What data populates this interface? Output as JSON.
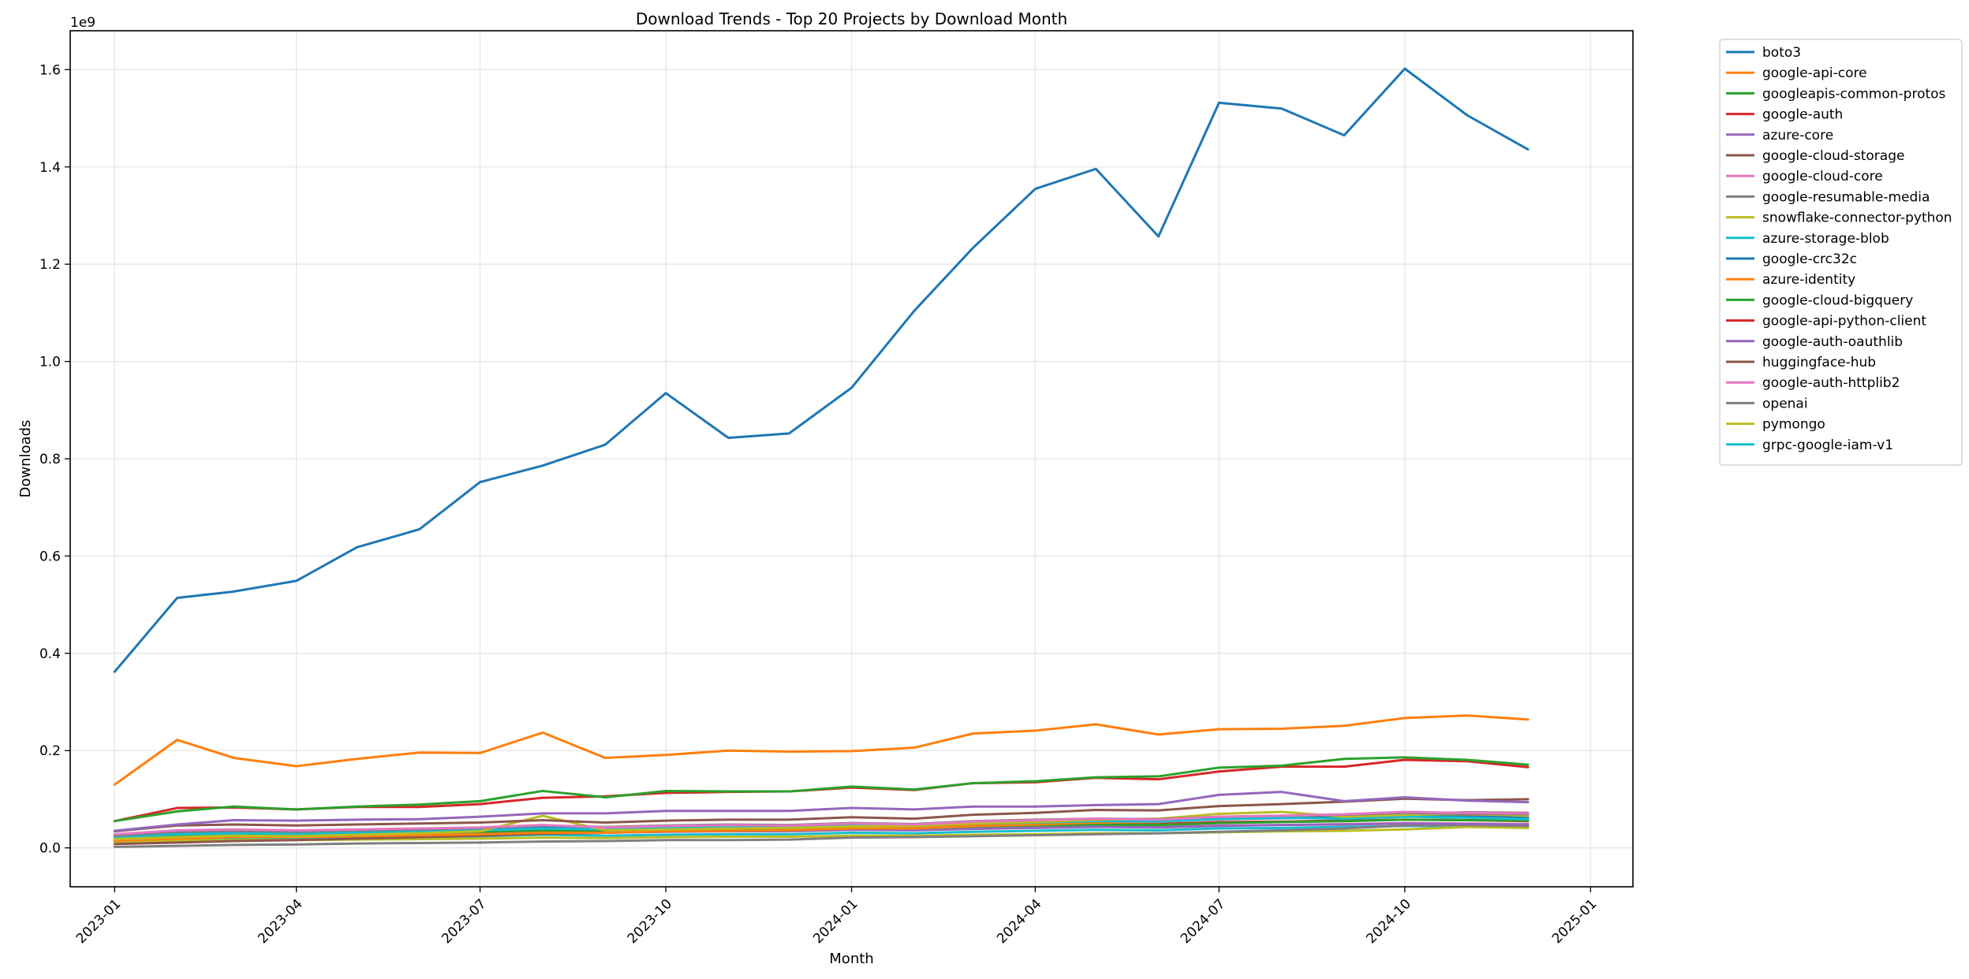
{
  "chart_data": {
    "type": "line",
    "title": "Download Trends - Top 20 Projects by Download Month",
    "xlabel": "Month",
    "ylabel": "Downloads",
    "y_offset_label": "1e9",
    "y_scale": 1000000000,
    "x_start_month": "2023-01",
    "x": [
      "2023-01",
      "2023-02",
      "2023-03",
      "2023-04",
      "2023-05",
      "2023-06",
      "2023-07",
      "2023-08",
      "2023-09",
      "2023-10",
      "2023-11",
      "2023-12",
      "2024-01",
      "2024-02",
      "2024-03",
      "2024-04",
      "2024-05",
      "2024-06",
      "2024-07",
      "2024-08",
      "2024-09",
      "2024-10",
      "2024-11",
      "2024-12"
    ],
    "xlim": [
      "2022-12-10",
      "2025-01-22"
    ],
    "ylim": [
      -0.08,
      1.68
    ],
    "xticks": [
      "2023-01",
      "2023-04",
      "2023-07",
      "2023-10",
      "2024-01",
      "2024-04",
      "2024-07",
      "2024-10",
      "2025-01"
    ],
    "yticks": [
      0.0,
      0.2,
      0.4,
      0.6,
      0.8,
      1.0,
      1.2,
      1.4,
      1.6
    ],
    "ytick_labels": [
      "0.0",
      "0.2",
      "0.4",
      "0.6",
      "0.8",
      "1.0",
      "1.2",
      "1.4",
      "1.6"
    ],
    "grid": true,
    "legend_position": "outside-right",
    "series": [
      {
        "name": "boto3",
        "color": "#1f77b4",
        "values": [
          0.362,
          0.514,
          0.527,
          0.549,
          0.618,
          0.655,
          0.752,
          0.786,
          0.829,
          0.935,
          0.843,
          0.852,
          0.946,
          1.104,
          1.233,
          1.355,
          1.396,
          1.257,
          1.532,
          1.52,
          1.465,
          1.602,
          1.506,
          1.436
        ]
      },
      {
        "name": "google-api-core",
        "color": "#ff7f0e",
        "values": [
          0.13,
          0.222,
          0.185,
          0.168,
          0.183,
          0.196,
          0.195,
          0.237,
          0.185,
          0.191,
          0.2,
          0.198,
          0.199,
          0.206,
          0.235,
          0.241,
          0.254,
          0.233,
          0.244,
          0.245,
          0.251,
          0.267,
          0.272,
          0.264
        ]
      },
      {
        "name": "googleapis-common-protos",
        "color": "#2ca02c",
        "values": [
          0.055,
          0.075,
          0.085,
          0.079,
          0.085,
          0.089,
          0.096,
          0.117,
          0.104,
          0.117,
          0.116,
          0.116,
          0.126,
          0.12,
          0.133,
          0.137,
          0.145,
          0.147,
          0.165,
          0.169,
          0.183,
          0.186,
          0.181,
          0.171
        ]
      },
      {
        "name": "google-auth",
        "color": "#d62728",
        "values": [
          0.055,
          0.082,
          0.083,
          0.079,
          0.084,
          0.084,
          0.09,
          0.103,
          0.106,
          0.113,
          0.115,
          0.116,
          0.124,
          0.119,
          0.133,
          0.135,
          0.144,
          0.141,
          0.157,
          0.167,
          0.167,
          0.181,
          0.178,
          0.166
        ]
      },
      {
        "name": "azure-core",
        "color": "#9467bd",
        "values": [
          0.035,
          0.048,
          0.057,
          0.056,
          0.058,
          0.059,
          0.064,
          0.071,
          0.071,
          0.076,
          0.076,
          0.076,
          0.082,
          0.079,
          0.085,
          0.085,
          0.088,
          0.09,
          0.109,
          0.115,
          0.096,
          0.104,
          0.097,
          0.094
        ]
      },
      {
        "name": "google-cloud-storage",
        "color": "#8c564b",
        "values": [
          0.034,
          0.046,
          0.048,
          0.046,
          0.048,
          0.05,
          0.052,
          0.057,
          0.052,
          0.056,
          0.058,
          0.058,
          0.063,
          0.06,
          0.068,
          0.072,
          0.078,
          0.077,
          0.086,
          0.09,
          0.095,
          0.101,
          0.098,
          0.1
        ]
      },
      {
        "name": "google-cloud-core",
        "color": "#e377c2",
        "values": [
          0.028,
          0.036,
          0.038,
          0.036,
          0.038,
          0.04,
          0.042,
          0.047,
          0.042,
          0.045,
          0.047,
          0.046,
          0.05,
          0.048,
          0.054,
          0.057,
          0.06,
          0.058,
          0.064,
          0.066,
          0.069,
          0.074,
          0.072,
          0.071
        ]
      },
      {
        "name": "google-resumable-media",
        "color": "#7f7f7f",
        "values": [
          0.025,
          0.033,
          0.035,
          0.033,
          0.036,
          0.038,
          0.041,
          0.046,
          0.043,
          0.046,
          0.048,
          0.047,
          0.051,
          0.049,
          0.055,
          0.058,
          0.06,
          0.059,
          0.064,
          0.066,
          0.068,
          0.072,
          0.07,
          0.069
        ]
      },
      {
        "name": "snowflake-connector-python",
        "color": "#bcbd22",
        "values": [
          0.018,
          0.022,
          0.025,
          0.024,
          0.027,
          0.03,
          0.034,
          0.066,
          0.036,
          0.038,
          0.04,
          0.041,
          0.044,
          0.045,
          0.05,
          0.053,
          0.058,
          0.06,
          0.07,
          0.074,
          0.064,
          0.068,
          0.07,
          0.066
        ]
      },
      {
        "name": "azure-storage-blob",
        "color": "#17becf",
        "values": [
          0.022,
          0.028,
          0.03,
          0.029,
          0.031,
          0.033,
          0.036,
          0.04,
          0.038,
          0.041,
          0.043,
          0.043,
          0.046,
          0.045,
          0.05,
          0.052,
          0.055,
          0.054,
          0.059,
          0.062,
          0.06,
          0.064,
          0.062,
          0.059
        ]
      },
      {
        "name": "google-crc32c",
        "color": "#1f77b4",
        "values": [
          0.024,
          0.032,
          0.034,
          0.032,
          0.034,
          0.036,
          0.038,
          0.043,
          0.04,
          0.043,
          0.045,
          0.044,
          0.048,
          0.046,
          0.051,
          0.054,
          0.056,
          0.055,
          0.059,
          0.061,
          0.063,
          0.066,
          0.064,
          0.062
        ]
      },
      {
        "name": "azure-identity",
        "color": "#ff7f0e",
        "values": [
          0.015,
          0.019,
          0.022,
          0.022,
          0.024,
          0.026,
          0.028,
          0.031,
          0.031,
          0.034,
          0.035,
          0.036,
          0.04,
          0.04,
          0.045,
          0.048,
          0.052,
          0.053,
          0.06,
          0.063,
          0.062,
          0.066,
          0.066,
          0.063
        ]
      },
      {
        "name": "google-cloud-bigquery",
        "color": "#2ca02c",
        "values": [
          0.02,
          0.026,
          0.028,
          0.027,
          0.029,
          0.031,
          0.033,
          0.036,
          0.034,
          0.037,
          0.038,
          0.038,
          0.041,
          0.04,
          0.044,
          0.046,
          0.048,
          0.047,
          0.051,
          0.053,
          0.055,
          0.058,
          0.057,
          0.056
        ]
      },
      {
        "name": "google-api-python-client",
        "color": "#d62728",
        "values": [
          0.025,
          0.031,
          0.033,
          0.032,
          0.034,
          0.035,
          0.037,
          0.04,
          0.038,
          0.04,
          0.041,
          0.041,
          0.044,
          0.043,
          0.046,
          0.048,
          0.05,
          0.049,
          0.053,
          0.054,
          0.056,
          0.058,
          0.057,
          0.055
        ]
      },
      {
        "name": "google-auth-oauthlib",
        "color": "#9467bd",
        "values": [
          0.019,
          0.024,
          0.026,
          0.025,
          0.027,
          0.028,
          0.03,
          0.033,
          0.031,
          0.033,
          0.034,
          0.034,
          0.037,
          0.036,
          0.039,
          0.041,
          0.043,
          0.042,
          0.045,
          0.047,
          0.048,
          0.05,
          0.049,
          0.048
        ]
      },
      {
        "name": "huggingface-hub",
        "color": "#8c564b",
        "values": [
          0.008,
          0.011,
          0.014,
          0.016,
          0.019,
          0.022,
          0.025,
          0.029,
          0.031,
          0.034,
          0.036,
          0.038,
          0.042,
          0.043,
          0.047,
          0.05,
          0.054,
          0.056,
          0.061,
          0.064,
          0.067,
          0.071,
          0.073,
          0.072
        ]
      },
      {
        "name": "google-auth-httplib2",
        "color": "#e377c2",
        "values": [
          0.02,
          0.025,
          0.027,
          0.026,
          0.028,
          0.029,
          0.031,
          0.034,
          0.032,
          0.034,
          0.035,
          0.035,
          0.038,
          0.037,
          0.04,
          0.042,
          0.044,
          0.043,
          0.046,
          0.047,
          0.049,
          0.051,
          0.05,
          0.049
        ]
      },
      {
        "name": "openai",
        "color": "#7f7f7f",
        "values": [
          0.002,
          0.004,
          0.006,
          0.007,
          0.009,
          0.01,
          0.011,
          0.013,
          0.014,
          0.016,
          0.016,
          0.017,
          0.021,
          0.022,
          0.024,
          0.026,
          0.028,
          0.03,
          0.033,
          0.036,
          0.04,
          0.046,
          0.047,
          0.045
        ]
      },
      {
        "name": "pymongo",
        "color": "#bcbd22",
        "values": [
          0.012,
          0.015,
          0.016,
          0.016,
          0.017,
          0.018,
          0.019,
          0.021,
          0.02,
          0.022,
          0.023,
          0.023,
          0.025,
          0.025,
          0.027,
          0.028,
          0.03,
          0.03,
          0.032,
          0.034,
          0.035,
          0.038,
          0.043,
          0.041
        ]
      },
      {
        "name": "grpc-google-iam-v1",
        "color": "#17becf",
        "values": [
          0.014,
          0.018,
          0.02,
          0.019,
          0.021,
          0.022,
          0.024,
          0.027,
          0.025,
          0.027,
          0.028,
          0.028,
          0.031,
          0.03,
          0.033,
          0.035,
          0.037,
          0.036,
          0.04,
          0.041,
          0.043,
          0.045,
          0.044,
          0.042
        ]
      }
    ]
  }
}
